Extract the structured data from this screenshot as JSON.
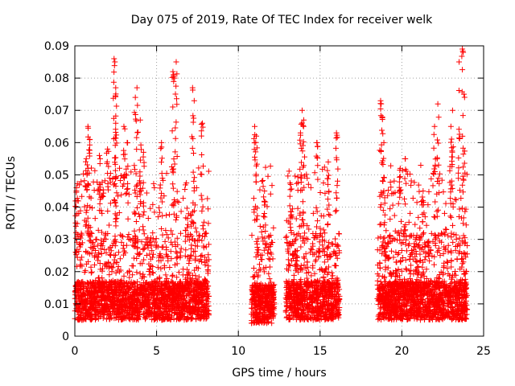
{
  "chart_data": {
    "type": "scatter",
    "title": "Day 075 of 2019, Rate Of TEC Index for receiver welk",
    "xlabel": "GPS time / hours",
    "ylabel": "ROTI / TECUs",
    "xlim": [
      0,
      25
    ],
    "ylim": [
      0,
      0.09
    ],
    "x_ticks": [
      "0",
      "5",
      "10",
      "15",
      "20",
      "25"
    ],
    "y_ticks": [
      "0",
      "0.01",
      "0.02",
      "0.03",
      "0.04",
      "0.05",
      "0.06",
      "0.07",
      "0.08",
      "0.09"
    ],
    "grid": true,
    "marker": "+",
    "color": "#ff0000",
    "series": [
      {
        "name": "ROTI",
        "segments": [
          {
            "start": 0.0,
            "end": 8.2,
            "baseline": 0.011,
            "points": 2200
          },
          {
            "start": 10.8,
            "end": 12.2,
            "baseline": 0.01,
            "points": 420
          },
          {
            "start": 12.9,
            "end": 16.2,
            "baseline": 0.011,
            "points": 900
          },
          {
            "start": 18.5,
            "end": 24.0,
            "baseline": 0.011,
            "points": 1600
          }
        ],
        "spikes": [
          {
            "x": 0.1,
            "y": 0.046
          },
          {
            "x": 0.7,
            "y": 0.055
          },
          {
            "x": 0.8,
            "y": 0.065
          },
          {
            "x": 0.9,
            "y": 0.061
          },
          {
            "x": 1.5,
            "y": 0.056
          },
          {
            "x": 2.0,
            "y": 0.058
          },
          {
            "x": 2.4,
            "y": 0.086
          },
          {
            "x": 2.45,
            "y": 0.085
          },
          {
            "x": 2.5,
            "y": 0.077
          },
          {
            "x": 2.5,
            "y": 0.066
          },
          {
            "x": 3.0,
            "y": 0.065
          },
          {
            "x": 3.2,
            "y": 0.06
          },
          {
            "x": 3.7,
            "y": 0.074
          },
          {
            "x": 3.8,
            "y": 0.077
          },
          {
            "x": 4.0,
            "y": 0.067
          },
          {
            "x": 4.2,
            "y": 0.057
          },
          {
            "x": 5.3,
            "y": 0.06
          },
          {
            "x": 6.0,
            "y": 0.082
          },
          {
            "x": 6.1,
            "y": 0.08
          },
          {
            "x": 6.2,
            "y": 0.085
          },
          {
            "x": 7.2,
            "y": 0.077
          },
          {
            "x": 7.3,
            "y": 0.073
          },
          {
            "x": 7.8,
            "y": 0.066
          },
          {
            "x": 11.0,
            "y": 0.065
          },
          {
            "x": 11.1,
            "y": 0.062
          },
          {
            "x": 11.6,
            "y": 0.045
          },
          {
            "x": 13.2,
            "y": 0.047
          },
          {
            "x": 13.8,
            "y": 0.063
          },
          {
            "x": 13.9,
            "y": 0.07
          },
          {
            "x": 14.0,
            "y": 0.067
          },
          {
            "x": 14.8,
            "y": 0.06
          },
          {
            "x": 15.5,
            "y": 0.054
          },
          {
            "x": 16.0,
            "y": 0.063
          },
          {
            "x": 18.7,
            "y": 0.073
          },
          {
            "x": 18.8,
            "y": 0.068
          },
          {
            "x": 18.9,
            "y": 0.06
          },
          {
            "x": 19.9,
            "y": 0.052
          },
          {
            "x": 20.2,
            "y": 0.055
          },
          {
            "x": 21.3,
            "y": 0.045
          },
          {
            "x": 22.0,
            "y": 0.065
          },
          {
            "x": 22.2,
            "y": 0.072
          },
          {
            "x": 23.0,
            "y": 0.065
          },
          {
            "x": 23.1,
            "y": 0.07
          },
          {
            "x": 23.5,
            "y": 0.085
          },
          {
            "x": 23.7,
            "y": 0.089
          },
          {
            "x": 23.8,
            "y": 0.075
          }
        ]
      }
    ]
  }
}
